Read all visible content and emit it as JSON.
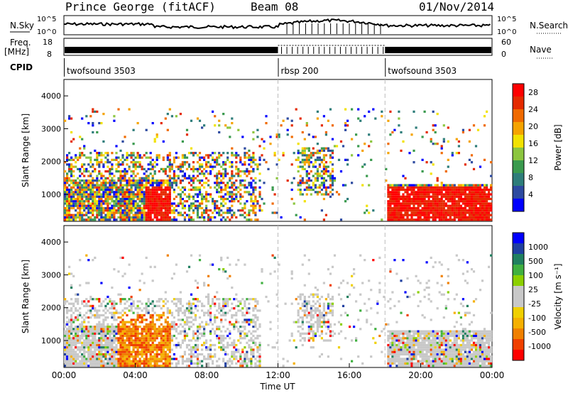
{
  "header": {
    "station": "Prince George (fitACF)",
    "beam": "Beam 08",
    "date": "01/Nov/2014"
  },
  "panel_labels": {
    "nsky": "N.Sky",
    "freq": "Freq.",
    "mhz": "[MHz]",
    "cpid": "CPID",
    "nsearch": "N.Search",
    "nave": "Nave",
    "nsky_top": "10^5",
    "nsky_bottom": "10^0",
    "nsearch_top": "10^5",
    "nsearch_bottom": "10^0",
    "freq_top": "18",
    "freq_bottom": "8",
    "nave_top": "60",
    "nave_bottom": "0"
  },
  "cpid": [
    {
      "label": "twofsound 3503",
      "start_h": 0
    },
    {
      "label": "rbsp 200",
      "start_h": 12
    },
    {
      "label": "twofsound 3503",
      "start_h": 18
    }
  ],
  "colors": {
    "power_scale": [
      "#0000ff",
      "#2d4aa0",
      "#2e7d7a",
      "#3a9a4e",
      "#8cc63f",
      "#f2e200",
      "#f5a300",
      "#f06a00",
      "#e52a00",
      "#ff0000"
    ],
    "velocity_scale": [
      "#ff0000",
      "#f04000",
      "#f08000",
      "#f5b000",
      "#f0d000",
      "#c8c8c8",
      "#c8c8c8",
      "#8cd000",
      "#40b040",
      "#208060",
      "#2040a0",
      "#0000ff"
    ]
  },
  "chart_data": [
    {
      "type": "heatmap",
      "quantity": "Power",
      "xlabel": "",
      "ylabel": "Slant Range [km]",
      "xlim": [
        0,
        24
      ],
      "ylim": [
        180,
        4500
      ],
      "x_ticks": [
        "00:00",
        "04:00",
        "08:00",
        "12:00",
        "16:00",
        "20:00",
        "00:00"
      ],
      "y_ticks": [
        1000,
        2000,
        3000,
        4000
      ],
      "colorbar_label": "Power [dB]",
      "colorbar_ticks": [
        4,
        8,
        12,
        16,
        20,
        24,
        28
      ],
      "colorbar_range": [
        0,
        30
      ]
    },
    {
      "type": "heatmap",
      "quantity": "Velocity",
      "xlabel": "Time UT",
      "ylabel": "Slant Range [km]",
      "xlim": [
        0,
        24
      ],
      "ylim": [
        180,
        4500
      ],
      "x_ticks": [
        "00:00",
        "04:00",
        "08:00",
        "12:00",
        "16:00",
        "20:00",
        "00:00"
      ],
      "y_ticks": [
        1000,
        2000,
        3000,
        4000
      ],
      "colorbar_label": "Velocity [m s⁻¹]",
      "colorbar_ticks": [
        -1000,
        -500,
        -100,
        -25,
        25,
        100,
        500,
        1000
      ]
    }
  ]
}
